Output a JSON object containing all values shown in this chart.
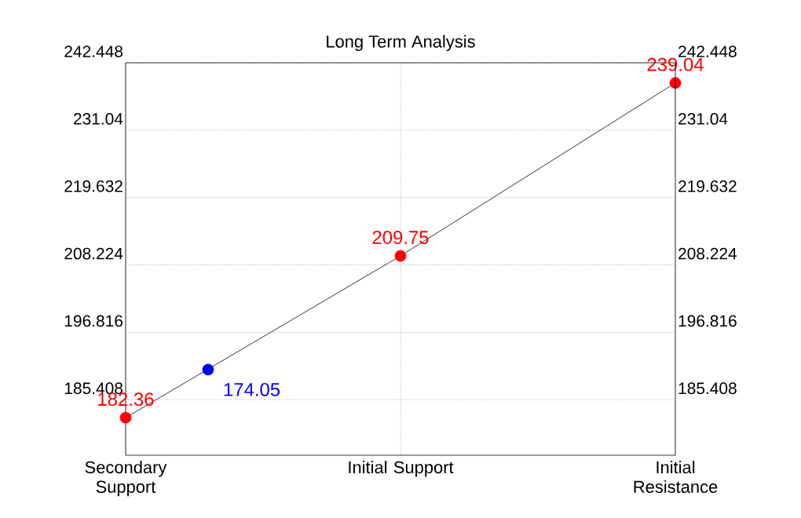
{
  "chart_data": {
    "type": "line",
    "title": "Long Term Analysis",
    "categories": [
      "Secondary Support",
      null,
      null,
      null,
      null,
      null,
      null,
      null,
      null,
      null,
      "Initial Support",
      null,
      null,
      null,
      null,
      null,
      null,
      null,
      null,
      null,
      "Initial Resistance"
    ],
    "series": [
      {
        "color": "#000000",
        "colors": [
          "#ff0000",
          null,
          null,
          null,
          null,
          null,
          null,
          null,
          null,
          null,
          "#ff0000",
          null,
          null,
          null,
          null,
          null,
          null,
          null,
          null,
          null,
          "#ff0000"
        ],
        "marker": "circle",
        "values": [
          182.36,
          null,
          null,
          null,
          null,
          null,
          null,
          null,
          null,
          null,
          209.75,
          null,
          null,
          null,
          null,
          null,
          null,
          null,
          null,
          null,
          239.04
        ],
        "value_labels": [
          "182.36",
          null,
          null,
          null,
          null,
          null,
          null,
          null,
          null,
          null,
          "209.75",
          null,
          null,
          null,
          null,
          null,
          null,
          null,
          null,
          null,
          "239.04"
        ]
      },
      {
        "type": "scatter",
        "color": "#0000ff",
        "values": [
          null,
          null,
          null,
          190.5,
          null,
          null,
          null,
          null,
          null,
          null,
          null,
          null,
          null,
          null,
          null,
          null,
          null,
          null,
          null,
          null,
          null
        ]
      }
    ],
    "annotations": [
      "174.05"
    ],
    "ylim": [
      176.0,
      242.448
    ],
    "yticks": [
      185.408,
      196.816,
      208.224,
      219.632,
      231.04,
      242.448
    ],
    "y2lim": [
      176.0,
      242.448
    ],
    "y2ticks": [
      185.408,
      196.816,
      208.224,
      219.632,
      231.04,
      242.448
    ],
    "grid": true
  }
}
